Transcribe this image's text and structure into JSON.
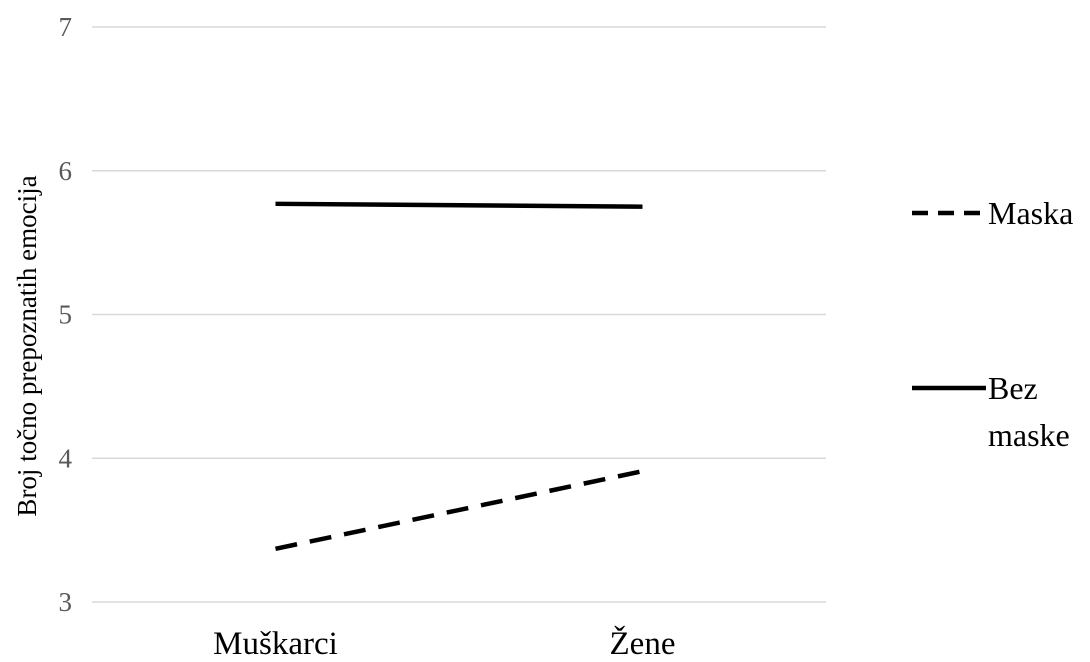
{
  "chart_data": {
    "type": "line",
    "categories": [
      "Muškarci",
      "Žene"
    ],
    "series": [
      {
        "name": "Maska",
        "values": [
          3.37,
          3.91
        ],
        "line_style": "dashed",
        "color": "#000000"
      },
      {
        "name": "Bez maske",
        "values": [
          5.77,
          5.75
        ],
        "line_style": "solid",
        "color": "#000000"
      }
    ],
    "ylabel": "Broj točno prepoznatih emocija",
    "xlabel": "",
    "ylim": [
      3,
      7
    ],
    "yticks": [
      3,
      4,
      5,
      6,
      7
    ],
    "grid": "horizontal",
    "legend_position": "right",
    "legend_labels": [
      {
        "line1": "Maska",
        "line2": ""
      },
      {
        "line1": "Bez",
        "line2": "maske"
      }
    ]
  }
}
